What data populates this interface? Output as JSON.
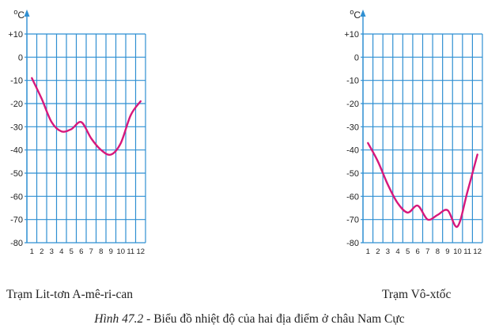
{
  "chart_data": [
    {
      "type": "line",
      "title": "Trạm Lit-tơn A-mê-ri-can",
      "unit_label": "oC",
      "x": [
        1,
        2,
        3,
        4,
        5,
        6,
        7,
        8,
        9,
        10,
        11,
        12
      ],
      "y": [
        -9,
        -18,
        -28,
        -32,
        -31,
        -28,
        -35,
        -40,
        -42,
        -37,
        -25,
        -19
      ],
      "ylim": [
        -80,
        10
      ],
      "yticks": [
        10,
        0,
        -10,
        -20,
        -30,
        -40,
        -50,
        -60,
        -70,
        -80
      ],
      "ytick_labels": [
        "+10",
        "0",
        "-10",
        "-20",
        "-30",
        "-40",
        "-50",
        "-60",
        "-70",
        "-80"
      ],
      "grid": true,
      "line_color": "#d6187c",
      "grid_color": "#2f8fd2"
    },
    {
      "type": "line",
      "title": "Trạm Vô-xtốc",
      "unit_label": "oC",
      "x": [
        1,
        2,
        3,
        4,
        5,
        6,
        7,
        8,
        9,
        10,
        11,
        12
      ],
      "y": [
        -37,
        -45,
        -55,
        -63,
        -67,
        -64,
        -70,
        -68,
        -66,
        -73,
        -58,
        -42
      ],
      "ylim": [
        -80,
        10
      ],
      "yticks": [
        10,
        0,
        -10,
        -20,
        -30,
        -40,
        -50,
        -60,
        -70,
        -80
      ],
      "ytick_labels": [
        "+10",
        "0",
        "-10",
        "-20",
        "-30",
        "-40",
        "-50",
        "-60",
        "-70",
        "-80"
      ],
      "grid": true,
      "line_color": "#d6187c",
      "grid_color": "#2f8fd2"
    }
  ],
  "caption": {
    "number": "Hình 47.2",
    "text": "- Biểu đồ nhiệt độ của hai địa điểm ở châu Nam Cực"
  }
}
